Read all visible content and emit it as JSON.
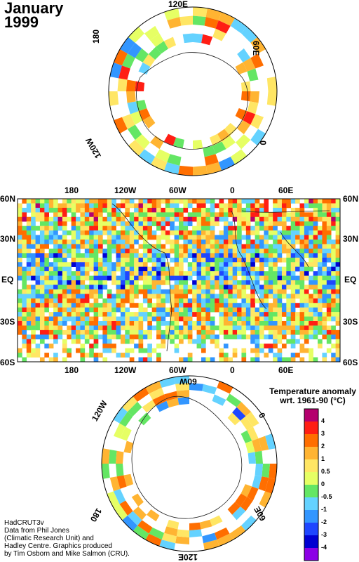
{
  "title": {
    "line1": "January",
    "line2": "1999"
  },
  "north_polar": {
    "labels": {
      "top": "120E",
      "left": "180",
      "right": "60E",
      "bottom_left": "120W",
      "bottom_right": "0"
    }
  },
  "map": {
    "top_lon_labels": [
      "180",
      "120W",
      "60W",
      "0",
      "60E"
    ],
    "bottom_lon_labels": [
      "180",
      "120W",
      "60W",
      "0",
      "60E"
    ],
    "lat_labels": [
      "60N",
      "30N",
      "EQ",
      "30S",
      "60S"
    ]
  },
  "south_polar": {
    "labels": {
      "top": "60W",
      "left": "120W",
      "right": "0",
      "bottom_left": "180",
      "bottom_right": "60E",
      "bottom": "120E"
    }
  },
  "legend": {
    "title_line1": "Temperature anomaly",
    "title_line2": "wrt. 1961-90  (°C)",
    "levels": [
      "4",
      "3",
      "2",
      "1",
      "0.5",
      "0",
      "-0.5",
      "-1",
      "-2",
      "-3",
      "-4"
    ],
    "colors": [
      "#b4006e",
      "#ff1e14",
      "#ff6e00",
      "#ffb432",
      "#ffe664",
      "#e6ff64",
      "#64e664",
      "#64d2ff",
      "#3296ff",
      "#1e46ff",
      "#0000d2",
      "#8c00e6"
    ]
  },
  "credit": {
    "line1": "HadCRUT3v",
    "line2": "Data from Phil Jones",
    "line3": "(Climatic Research Unit) and",
    "line4": "Hadley Centre.  Graphics produced",
    "line5": "by Tim Osborn and Mike Salmon (CRU)."
  }
}
